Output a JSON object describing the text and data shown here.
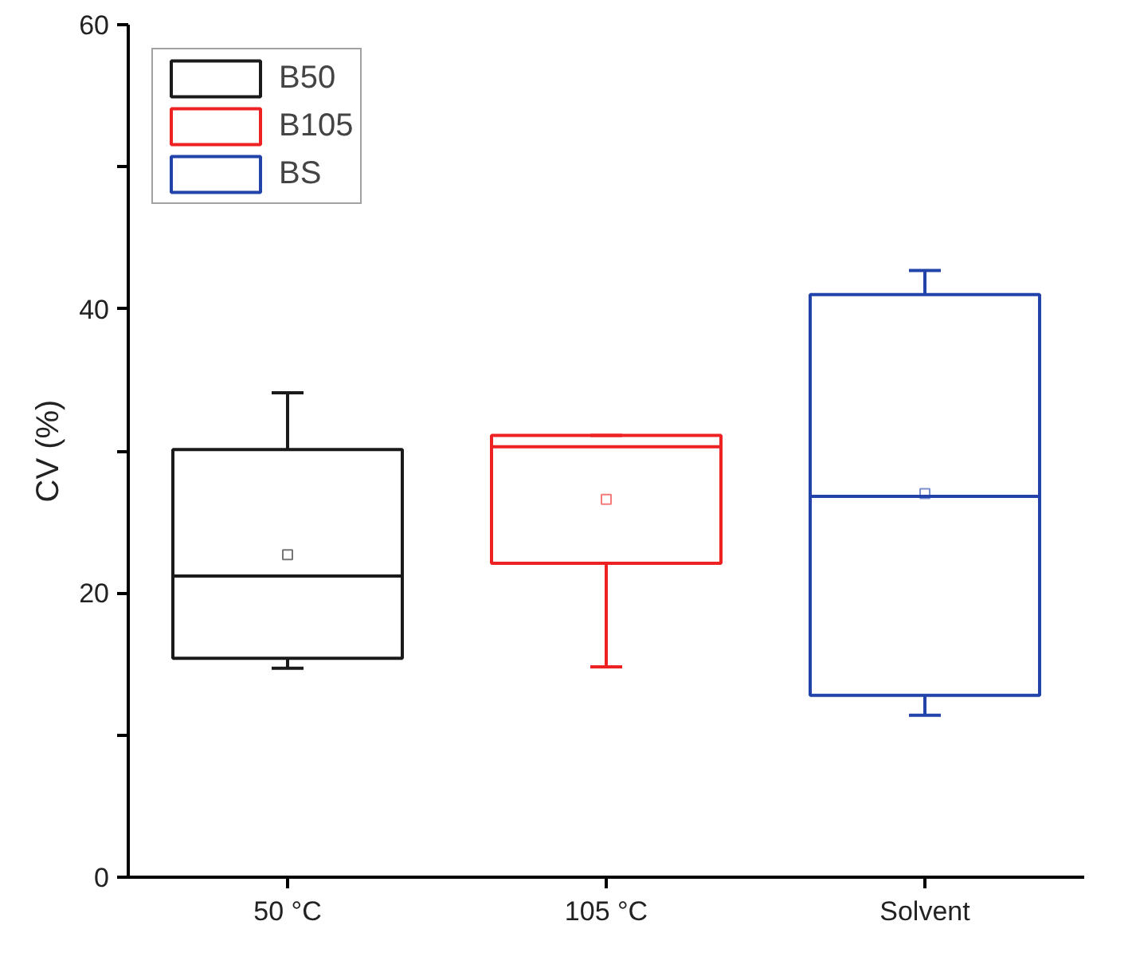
{
  "chart_data": {
    "type": "box",
    "ylabel": "CV (%)",
    "categories": [
      "50 °C",
      "105 °C",
      "Solvent"
    ],
    "ylim": [
      0,
      60
    ],
    "yticks": [
      0,
      {
        "value": 10,
        "label": null
      },
      20,
      {
        "value": 30,
        "label": null
      },
      40,
      {
        "value": 50,
        "label": null
      },
      60
    ],
    "grid": false,
    "legend": "top left",
    "series": [
      {
        "name": "B50",
        "color": "#1a1a1a",
        "boxes": [
          {
            "low": 14.7,
            "q1": 15.4,
            "median": 21.2,
            "q3": 30.1,
            "high": 34.1,
            "mean": 22.7
          },
          null,
          null
        ]
      },
      {
        "name": "B105",
        "color": "#ee2222",
        "boxes": [
          null,
          {
            "low": 14.8,
            "q1": 22.1,
            "median": 30.3,
            "q3": 31.1,
            "high": 31.1,
            "mean": 26.6
          },
          null
        ]
      },
      {
        "name": "BS",
        "color": "#2244aa",
        "boxes": [
          null,
          null,
          {
            "low": 11.4,
            "q1": 12.8,
            "median": 26.8,
            "q3": 41.0,
            "high": 42.7,
            "mean": 27.0
          }
        ]
      }
    ]
  }
}
